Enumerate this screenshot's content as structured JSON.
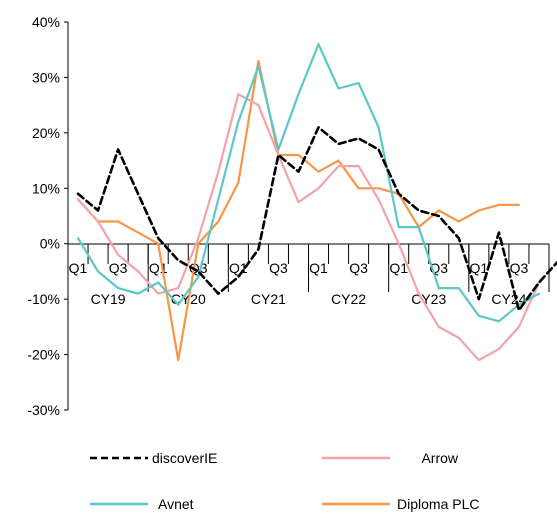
{
  "chart_data": {
    "type": "line",
    "y_ticks": [
      "40%",
      "30%",
      "20%",
      "10%",
      "0%",
      "-10%",
      "-20%",
      "-30%"
    ],
    "ylim": [
      -30,
      40
    ],
    "quarter_labels": [
      "Q1",
      "Q3",
      "Q1",
      "Q3",
      "Q1",
      "Q3",
      "Q1",
      "Q3",
      "Q1",
      "Q3",
      "Q1",
      "Q3"
    ],
    "years": [
      "CY19",
      "CY20",
      "CY21",
      "CY22",
      "CY23",
      "CY24"
    ],
    "grid": false,
    "legend_position": "bottom",
    "series": [
      {
        "name": "discoverIE",
        "color": "#000000",
        "dash": true,
        "values": [
          9,
          6,
          17,
          9,
          1,
          -3,
          -5,
          -9,
          -6,
          -1,
          16,
          13,
          21,
          18,
          19,
          17,
          9,
          6,
          5,
          1,
          -10,
          2,
          -12,
          -7,
          -3
        ]
      },
      {
        "name": "Arrow",
        "color": "#f4a3a8",
        "dash": false,
        "values": [
          8,
          4,
          -2,
          -5,
          -9,
          -8,
          1,
          13,
          27,
          25,
          16,
          7.5,
          10,
          14,
          14,
          8,
          0,
          -9,
          -15,
          -17,
          -21,
          -19,
          -15,
          -7
        ]
      },
      {
        "name": "Avnet",
        "color": "#5bc8c8",
        "dash": false,
        "values": [
          1,
          -5,
          -8,
          -9,
          -7,
          -11,
          -6,
          8,
          22,
          32,
          17,
          27,
          36,
          28,
          29,
          21,
          3,
          3,
          -8,
          -8,
          -13,
          -14,
          -11,
          -9
        ]
      },
      {
        "name": "Diploma PLC",
        "color": "#f79646",
        "dash": false,
        "values": [
          8,
          4,
          4,
          2,
          0,
          -21,
          0,
          4,
          11,
          33,
          16,
          16,
          13,
          15,
          10,
          10,
          9,
          3,
          6,
          4,
          6,
          7,
          7
        ]
      }
    ]
  }
}
